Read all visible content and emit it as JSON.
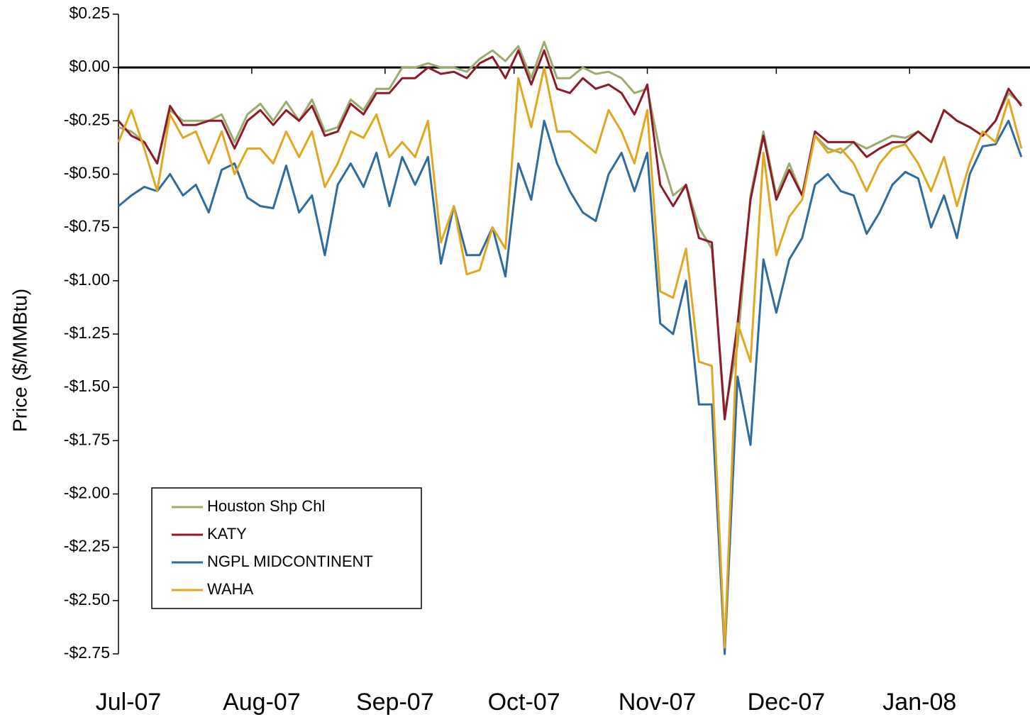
{
  "chart_data": {
    "type": "line",
    "y_label": "Price ($/MMBtu)",
    "x": [
      0,
      3,
      6,
      9,
      12,
      15,
      18,
      21,
      24,
      27,
      30,
      33,
      36,
      39,
      42,
      45,
      48,
      51,
      54,
      57,
      60,
      63,
      66,
      69,
      72,
      75,
      78,
      81,
      84,
      87,
      90,
      93,
      96,
      99,
      102,
      105,
      108,
      111,
      114,
      117,
      120,
      123,
      126,
      129,
      132,
      135,
      138,
      141,
      144,
      147,
      150,
      153,
      156,
      159,
      162,
      165,
      168,
      171,
      174,
      177,
      180,
      183,
      186,
      189,
      192,
      195,
      198,
      201,
      204,
      207,
      210
    ],
    "xlim": [
      0,
      212
    ],
    "xticks": [
      {
        "value": 0,
        "label": "Jul-07"
      },
      {
        "value": 31,
        "label": "Aug-07"
      },
      {
        "value": 62,
        "label": "Sep-07"
      },
      {
        "value": 92,
        "label": "Oct-07"
      },
      {
        "value": 123,
        "label": "Nov-07"
      },
      {
        "value": 153,
        "label": "Dec-07"
      },
      {
        "value": 184,
        "label": "Jan-08"
      }
    ],
    "ylim": [
      -2.75,
      0.25
    ],
    "yticks": [
      {
        "value": 0.25,
        "label": "$0.25"
      },
      {
        "value": 0,
        "label": "$0.00"
      },
      {
        "value": -0.25,
        "label": "-$0.25"
      },
      {
        "value": -0.5,
        "label": "-$0.50"
      },
      {
        "value": -0.75,
        "label": "-$0.75"
      },
      {
        "value": -1,
        "label": "-$1.00"
      },
      {
        "value": -1.25,
        "label": "-$1.25"
      },
      {
        "value": -1.5,
        "label": "-$1.50"
      },
      {
        "value": -1.75,
        "label": "-$1.75"
      },
      {
        "value": -2,
        "label": "-$2.00"
      },
      {
        "value": -2.25,
        "label": "-$2.25"
      },
      {
        "value": -2.5,
        "label": "-$2.50"
      },
      {
        "value": -2.75,
        "label": "-$2.75"
      }
    ],
    "legend": "lower-left",
    "series": [
      {
        "name": "Houston Shp Chl",
        "color": "#9bab6b",
        "values": [
          -0.28,
          -0.3,
          -0.35,
          -0.45,
          -0.2,
          -0.25,
          -0.25,
          -0.25,
          -0.22,
          -0.35,
          -0.22,
          -0.17,
          -0.25,
          -0.16,
          -0.25,
          -0.15,
          -0.3,
          -0.28,
          -0.15,
          -0.2,
          -0.1,
          -0.1,
          0.0,
          0.0,
          0.02,
          0.0,
          0.0,
          -0.02,
          0.04,
          0.08,
          0.03,
          0.1,
          -0.05,
          0.12,
          -0.05,
          -0.05,
          0.0,
          -0.03,
          -0.02,
          -0.05,
          -0.12,
          -0.1,
          -0.4,
          -0.6,
          -0.55,
          -0.75,
          -0.85,
          -1.62,
          -1.3,
          -0.6,
          -0.3,
          -0.6,
          -0.45,
          -0.6,
          -0.32,
          -0.38,
          -0.4,
          -0.35,
          -0.38,
          -0.35,
          -0.32,
          -0.33,
          -0.3,
          -0.35,
          -0.2,
          -0.25,
          -0.28,
          -0.32,
          -0.25,
          -0.12,
          -0.17
        ]
      },
      {
        "name": "KATY",
        "color": "#8b1a2a",
        "values": [
          -0.25,
          -0.32,
          -0.35,
          -0.45,
          -0.18,
          -0.27,
          -0.27,
          -0.25,
          -0.25,
          -0.38,
          -0.25,
          -0.2,
          -0.27,
          -0.2,
          -0.25,
          -0.18,
          -0.32,
          -0.3,
          -0.17,
          -0.22,
          -0.12,
          -0.12,
          -0.05,
          -0.05,
          0.0,
          -0.03,
          -0.02,
          -0.05,
          0.02,
          0.05,
          -0.05,
          0.08,
          -0.08,
          0.08,
          -0.1,
          -0.12,
          -0.05,
          -0.1,
          -0.08,
          -0.12,
          -0.22,
          -0.08,
          -0.55,
          -0.65,
          -0.55,
          -0.8,
          -0.82,
          -1.65,
          -1.2,
          -0.62,
          -0.32,
          -0.62,
          -0.48,
          -0.6,
          -0.3,
          -0.35,
          -0.35,
          -0.35,
          -0.42,
          -0.38,
          -0.35,
          -0.35,
          -0.3,
          -0.35,
          -0.2,
          -0.25,
          -0.28,
          -0.32,
          -0.25,
          -0.1,
          -0.18
        ]
      },
      {
        "name": "NGPL MIDCONTINENT",
        "color": "#2e6b9e",
        "values": [
          -0.65,
          -0.6,
          -0.56,
          -0.58,
          -0.5,
          -0.6,
          -0.55,
          -0.68,
          -0.48,
          -0.45,
          -0.61,
          -0.65,
          -0.66,
          -0.46,
          -0.68,
          -0.6,
          -0.88,
          -0.55,
          -0.45,
          -0.56,
          -0.4,
          -0.65,
          -0.42,
          -0.55,
          -0.42,
          -0.92,
          -0.65,
          -0.88,
          -0.88,
          -0.75,
          -0.98,
          -0.45,
          -0.62,
          -0.25,
          -0.45,
          -0.58,
          -0.68,
          -0.72,
          -0.5,
          -0.4,
          -0.58,
          -0.4,
          -1.2,
          -1.25,
          -1.0,
          -1.58,
          -1.58,
          -2.75,
          -1.45,
          -1.77,
          -0.9,
          -1.15,
          -0.9,
          -0.8,
          -0.55,
          -0.5,
          -0.58,
          -0.6,
          -0.78,
          -0.68,
          -0.55,
          -0.49,
          -0.52,
          -0.75,
          -0.6,
          -0.8,
          -0.5,
          -0.37,
          -0.36,
          -0.25,
          -0.42
        ]
      },
      {
        "name": "WAHA",
        "color": "#e0a720",
        "values": [
          -0.35,
          -0.2,
          -0.38,
          -0.58,
          -0.22,
          -0.33,
          -0.3,
          -0.45,
          -0.3,
          -0.5,
          -0.38,
          -0.38,
          -0.45,
          -0.3,
          -0.42,
          -0.3,
          -0.56,
          -0.45,
          -0.3,
          -0.33,
          -0.22,
          -0.42,
          -0.35,
          -0.42,
          -0.25,
          -0.82,
          -0.65,
          -0.97,
          -0.95,
          -0.75,
          -0.85,
          -0.05,
          -0.28,
          0.0,
          -0.3,
          -0.3,
          -0.35,
          -0.4,
          -0.2,
          -0.3,
          -0.45,
          -0.2,
          -1.05,
          -1.08,
          -0.85,
          -1.38,
          -1.4,
          -2.72,
          -1.2,
          -1.38,
          -0.4,
          -0.88,
          -0.7,
          -0.62,
          -0.32,
          -0.4,
          -0.38,
          -0.45,
          -0.58,
          -0.45,
          -0.38,
          -0.36,
          -0.45,
          -0.58,
          -0.42,
          -0.65,
          -0.45,
          -0.3,
          -0.35,
          -0.15,
          -0.38
        ]
      }
    ]
  }
}
